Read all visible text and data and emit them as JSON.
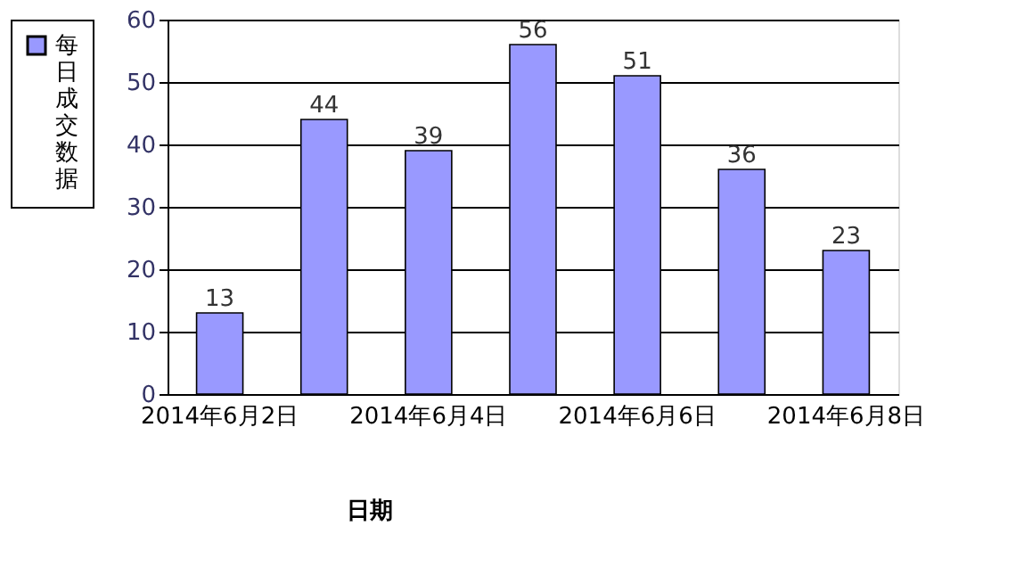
{
  "chart_data": {
    "type": "bar",
    "xlabel": "日期",
    "categories": [
      "2014年6月2日",
      null,
      "2014年6月4日",
      null,
      "2014年6月6日",
      null,
      "2014年6月8日"
    ],
    "series": [
      {
        "name": "每日成交数据",
        "color": "#9999ff",
        "values": [
          13,
          44,
          39,
          56,
          51,
          36,
          23
        ]
      }
    ],
    "ylim": [
      0,
      60
    ],
    "yticks": [
      0,
      10,
      20,
      30,
      40,
      50,
      60
    ],
    "grid": "y",
    "legend": "left",
    "data_labels": true
  }
}
